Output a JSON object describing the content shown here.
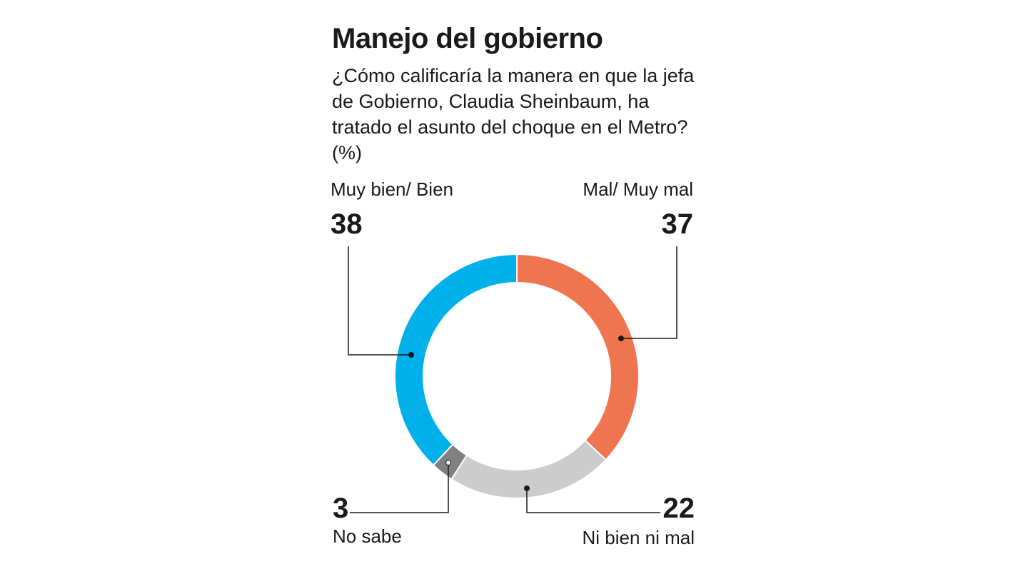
{
  "chart_data": {
    "type": "pie",
    "donut": true,
    "title": "Manejo del gobierno",
    "subtitle": "¿Cómo calificaría la manera en que la jefa de Gobierno, Claudia Sheinbaum, ha tratado el asunto del choque en el Metro? (%)",
    "slices": [
      {
        "label": "Mal/ Muy mal",
        "value": 37,
        "display": "37",
        "color": "#ef7551"
      },
      {
        "label": "Ni bien ni mal",
        "value": 22,
        "display": "22",
        "color": "#cccccc"
      },
      {
        "label": "No sabe",
        "value": 3,
        "display": "3",
        "color": "#808080"
      },
      {
        "label": "Muy bien/ Bien",
        "value": 38,
        "display": "38",
        "color": "#00b0eb"
      }
    ]
  }
}
